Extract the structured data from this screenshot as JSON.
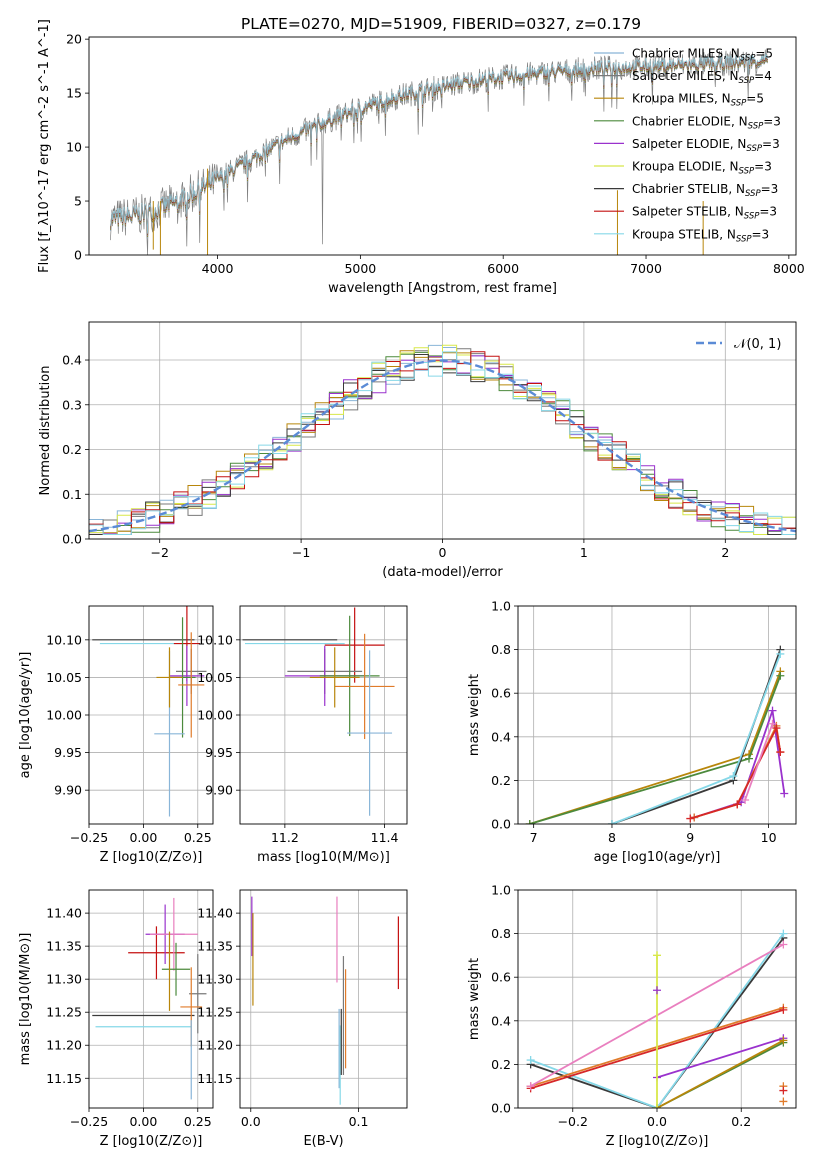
{
  "figure": {
    "title": "PLATE=0270, MJD=51909, FIBERID=0327, z=0.179"
  },
  "colors": {
    "series": [
      "#a6cee3",
      "#1f78b4",
      "#b2df8a",
      "#33a02c",
      "#fb9a99",
      "#e31a1c",
      "#fdbf6f",
      "#ff7f00",
      "#cab2d6"
    ],
    "fit_models": [
      "#89b5d8",
      "#7a7a7a",
      "#b8860b",
      "#4c8a3c",
      "#9a32cd",
      "#d8e84a",
      "#3a3a3a",
      "#c41010",
      "#86d8e8"
    ],
    "normal_curve": "#5b8bd6",
    "extra": [
      "#e97fbf",
      "#e07b2a",
      "#d62728"
    ]
  },
  "chart_data": [
    {
      "id": "spectrum",
      "type": "line",
      "title": "PLATE=0270, MJD=51909, FIBERID=0327, z=0.179",
      "xlabel": "wavelength [Angstrom, rest frame]",
      "ylabel": "Flux [f_λ10^-17 erg cm^-2 s^-1 A^-1]",
      "xlim": [
        3100,
        8050
      ],
      "ylim": [
        0,
        20.2
      ],
      "xticks": [
        4000,
        5000,
        6000,
        7000,
        8000
      ],
      "yticks": [
        0,
        5,
        10,
        15,
        20
      ],
      "grid": false,
      "legend_position": "right",
      "series": [
        {
          "name": "Chabrier MILES, N_SSP=5"
        },
        {
          "name": "Salpeter MILES, N_SSP=4"
        },
        {
          "name": "Kroupa MILES, N_SSP=5"
        },
        {
          "name": "Chabrier ELODIE, N_SSP=3"
        },
        {
          "name": "Salpeter ELODIE, N_SSP=3"
        },
        {
          "name": "Kroupa ELODIE, N_SSP=3"
        },
        {
          "name": "Chabrier STELIB, N_SSP=3"
        },
        {
          "name": "Salpeter STELIB, N_SSP=3"
        },
        {
          "name": "Kroupa STELIB, N_SSP=3"
        }
      ],
      "continuum": {
        "x": [
          3250,
          3500,
          3700,
          3900,
          4100,
          4300,
          4500,
          4700,
          4900,
          5100,
          5300,
          5500,
          5700,
          5900,
          6100,
          6300,
          6500,
          6700,
          6900,
          7100,
          7300,
          7500,
          7700,
          7850
        ],
        "y": [
          3.3,
          3.8,
          4.8,
          6.2,
          7.8,
          9.3,
          10.8,
          12.0,
          13.1,
          14.0,
          14.8,
          15.4,
          15.9,
          16.3,
          16.6,
          16.9,
          17.1,
          17.3,
          17.4,
          17.5,
          17.6,
          17.7,
          17.9,
          18.0
        ]
      }
    },
    {
      "id": "residuals",
      "type": "line",
      "xlabel": "(data-model)/error",
      "ylabel": "Normed distribution",
      "xlim": [
        -2.5,
        2.5
      ],
      "ylim": [
        0,
        0.485
      ],
      "xticks": [
        -2,
        -1,
        0,
        1,
        2
      ],
      "yticks": [
        0.0,
        0.1,
        0.2,
        0.3,
        0.4
      ],
      "grid": true,
      "legend_position": "top-right",
      "legend": [
        "𝒩(0, 1)"
      ],
      "bins": 50
    },
    {
      "id": "age_vs_Z",
      "type": "scatter",
      "xlabel": "Z [log10(Z/Z⊙)]",
      "ylabel": "age  [log10(age/yr)]",
      "xlim": [
        -0.25,
        0.32
      ],
      "ylim": [
        9.855,
        10.145
      ],
      "xticks": [
        -0.25,
        0.0,
        0.25
      ],
      "yticks": [
        9.9,
        9.95,
        10.0,
        10.05,
        10.1
      ],
      "grid": true,
      "points": [
        {
          "x": 0.0,
          "y": 10.1,
          "xerr": 0.235,
          "yerr": 0.0,
          "c": 6
        },
        {
          "x": 0.02,
          "y": 10.095,
          "xerr": 0.22,
          "yerr": 0.0,
          "c": 8
        },
        {
          "x": 0.2,
          "y": 10.095,
          "xerr": 0.06,
          "yerr": 0.05,
          "c": 7
        },
        {
          "x": 0.22,
          "y": 10.058,
          "xerr": 0.07,
          "yerr": 0.03,
          "c": 1
        },
        {
          "x": 0.2,
          "y": 10.052,
          "xerr": 0.08,
          "yerr": 0.04,
          "c": 4
        },
        {
          "x": 0.18,
          "y": 10.05,
          "xerr": 0.06,
          "yerr": 0.08,
          "c": 3
        },
        {
          "x": 0.22,
          "y": 10.04,
          "xerr": 0.06,
          "yerr": 0.07,
          "c": 10
        },
        {
          "x": 0.12,
          "y": 9.975,
          "xerr": 0.07,
          "yerr": 0.11,
          "c": 0
        },
        {
          "x": 0.12,
          "y": 10.05,
          "xerr": 0.06,
          "yerr": 0.04,
          "c": 2
        }
      ]
    },
    {
      "id": "age_vs_mass",
      "type": "scatter",
      "xlabel": "mass [log10(M/M⊙)]",
      "ylabel": "",
      "xlim": [
        11.11,
        11.445
      ],
      "ylim": [
        9.855,
        10.145
      ],
      "xticks": [
        11.2,
        11.4
      ],
      "yticks": [
        9.9,
        9.95,
        10.0,
        10.05,
        10.1
      ],
      "grid": true,
      "points": [
        {
          "x": 11.21,
          "y": 10.1,
          "xerr": 0.095,
          "yerr": 0.0,
          "c": 6
        },
        {
          "x": 11.22,
          "y": 10.095,
          "xerr": 0.1,
          "yerr": 0.0,
          "c": 8
        },
        {
          "x": 11.34,
          "y": 10.093,
          "xerr": 0.06,
          "yerr": 0.05,
          "c": 7
        },
        {
          "x": 11.28,
          "y": 10.058,
          "xerr": 0.075,
          "yerr": 0.03,
          "c": 1
        },
        {
          "x": 11.28,
          "y": 10.052,
          "xerr": 0.08,
          "yerr": 0.04,
          "c": 4
        },
        {
          "x": 11.33,
          "y": 10.052,
          "xerr": 0.06,
          "yerr": 0.08,
          "c": 3
        },
        {
          "x": 11.36,
          "y": 10.038,
          "xerr": 0.06,
          "yerr": 0.07,
          "c": 10
        },
        {
          "x": 11.37,
          "y": 9.976,
          "xerr": 0.045,
          "yerr": 0.11,
          "c": 0
        },
        {
          "x": 11.3,
          "y": 10.05,
          "xerr": 0.05,
          "yerr": 0.04,
          "c": 2
        }
      ]
    },
    {
      "id": "weight_vs_age",
      "type": "line",
      "xlabel": "age  [log10(age/yr)]",
      "ylabel": "mass weight",
      "xlim": [
        6.8,
        10.35
      ],
      "ylim": [
        0.0,
        1.0
      ],
      "xticks": [
        7,
        8,
        9,
        10
      ],
      "yticks": [
        0.0,
        0.2,
        0.4,
        0.6,
        0.8,
        1.0
      ],
      "grid": true,
      "series": [
        {
          "x": [
            6.95,
            9.75,
            10.15
          ],
          "y": [
            0.0,
            0.32,
            0.7
          ],
          "c": 2
        },
        {
          "x": [
            6.95,
            9.75,
            10.15
          ],
          "y": [
            0.0,
            0.3,
            0.68
          ],
          "c": 3
        },
        {
          "x": [
            8.0,
            9.55,
            10.15
          ],
          "y": [
            0.0,
            0.2,
            0.8
          ],
          "c": 6
        },
        {
          "x": [
            8.0,
            9.55,
            10.15
          ],
          "y": [
            0.0,
            0.22,
            0.78
          ],
          "c": 8
        },
        {
          "x": [
            9.05,
            9.65,
            10.05,
            10.2
          ],
          "y": [
            0.03,
            0.1,
            0.52,
            0.14
          ],
          "c": 4
        },
        {
          "x": [
            9.05,
            9.6,
            10.1,
            10.15
          ],
          "y": [
            0.03,
            0.09,
            0.45,
            0.33
          ],
          "c": 10
        },
        {
          "x": [
            9.0,
            9.6,
            10.1,
            10.15
          ],
          "y": [
            0.025,
            0.09,
            0.44,
            0.33
          ],
          "c": 11
        },
        {
          "x": [
            9.7,
            10.05
          ],
          "y": [
            0.11,
            0.46
          ],
          "c": 9
        }
      ]
    },
    {
      "id": "mass_vs_Z",
      "type": "scatter",
      "xlabel": "Z [log10(Z/Z⊙)]",
      "ylabel": "mass [log10(M/M⊙)]",
      "xlim": [
        -0.25,
        0.32
      ],
      "ylim": [
        11.105,
        11.435
      ],
      "xticks": [
        -0.25,
        0.0,
        0.25
      ],
      "yticks": [
        11.15,
        11.2,
        11.25,
        11.3,
        11.35,
        11.4
      ],
      "grid": true,
      "points": [
        {
          "x": 0.0,
          "y": 11.245,
          "xerr": 0.235,
          "yerr": 0.0,
          "c": 6
        },
        {
          "x": 0.0,
          "y": 11.228,
          "xerr": 0.22,
          "yerr": 0.0,
          "c": 8
        },
        {
          "x": 0.06,
          "y": 11.34,
          "xerr": 0.13,
          "yerr": 0.04,
          "c": 7
        },
        {
          "x": 0.25,
          "y": 11.278,
          "xerr": 0.04,
          "yerr": 0.06,
          "c": 1
        },
        {
          "x": 0.1,
          "y": 11.368,
          "xerr": 0.09,
          "yerr": 0.045,
          "c": 4
        },
        {
          "x": 0.14,
          "y": 11.368,
          "xerr": 0.11,
          "yerr": 0.055,
          "c": 9
        },
        {
          "x": 0.22,
          "y": 11.258,
          "xerr": 0.05,
          "yerr": 0.06,
          "c": 10
        },
        {
          "x": 0.15,
          "y": 11.315,
          "xerr": 0.065,
          "yerr": 0.04,
          "c": 3
        },
        {
          "x": 0.22,
          "y": 11.178,
          "xerr": 0.0,
          "yerr": 0.06,
          "c": 0
        },
        {
          "x": 0.12,
          "y": 11.312,
          "xerr": 0.0,
          "yerr": 0.06,
          "c": 2
        }
      ]
    },
    {
      "id": "mass_vs_ebv",
      "type": "scatter",
      "xlabel": "E(B-V)",
      "ylabel": "",
      "xlim": [
        -0.01,
        0.145
      ],
      "ylim": [
        11.105,
        11.435
      ],
      "xticks": [
        0.0,
        0.1
      ],
      "yticks": [
        11.15,
        11.2,
        11.25,
        11.3,
        11.35,
        11.4
      ],
      "grid": true,
      "points": [
        {
          "x": 0.001,
          "y": 11.38,
          "xerr": 0,
          "yerr": 0.045,
          "c": 4
        },
        {
          "x": 0.002,
          "y": 11.33,
          "xerr": 0,
          "yerr": 0.07,
          "c": 2
        },
        {
          "x": 0.08,
          "y": 11.36,
          "xerr": 0,
          "yerr": 0.065,
          "c": 9
        },
        {
          "x": 0.082,
          "y": 11.195,
          "xerr": 0,
          "yerr": 0.06,
          "c": 0
        },
        {
          "x": 0.083,
          "y": 11.17,
          "xerr": 0,
          "yerr": 0.06,
          "c": 8
        },
        {
          "x": 0.084,
          "y": 11.205,
          "xerr": 0,
          "yerr": 0.05,
          "c": 6
        },
        {
          "x": 0.086,
          "y": 11.245,
          "xerr": 0,
          "yerr": 0.09,
          "c": 1
        },
        {
          "x": 0.088,
          "y": 11.24,
          "xerr": 0,
          "yerr": 0.075,
          "c": 10
        },
        {
          "x": 0.137,
          "y": 11.34,
          "xerr": 0,
          "yerr": 0.055,
          "c": 7
        }
      ]
    },
    {
      "id": "weight_vs_Z",
      "type": "line",
      "xlabel": "Z [log10(Z/Z⊙)]",
      "ylabel": "mass weight",
      "xlim": [
        -0.33,
        0.33
      ],
      "ylim": [
        0.0,
        1.0
      ],
      "xticks": [
        -0.2,
        0.0,
        0.2
      ],
      "yticks": [
        0.0,
        0.2,
        0.4,
        0.6,
        0.8,
        1.0
      ],
      "grid": true,
      "series": [
        {
          "x": [
            -0.3,
            0.0,
            0.3
          ],
          "y": [
            0.2,
            0.0,
            0.78
          ],
          "c": 6
        },
        {
          "x": [
            -0.3,
            0.0,
            0.3
          ],
          "y": [
            0.22,
            0.0,
            0.8
          ],
          "c": 8
        },
        {
          "x": [
            -0.3,
            0.3
          ],
          "y": [
            0.1,
            0.46
          ],
          "c": 10
        },
        {
          "x": [
            -0.3,
            0.3
          ],
          "y": [
            0.09,
            0.45
          ],
          "c": 11
        },
        {
          "x": [
            -0.3,
            0.3
          ],
          "y": [
            0.1,
            0.75
          ],
          "c": 9
        },
        {
          "x": [
            0.0,
            0.3
          ],
          "y": [
            0.14,
            0.32
          ],
          "c": 4
        },
        {
          "x": [
            0.0,
            0.3
          ],
          "y": [
            0.0,
            0.3
          ],
          "c": 3
        },
        {
          "x": [
            0.0,
            0.3
          ],
          "y": [
            0.0,
            0.31
          ],
          "c": 2
        },
        {
          "x": [
            0.0,
            0.0
          ],
          "y": [
            0.0,
            0.7
          ],
          "c": 5
        }
      ],
      "markers": [
        {
          "x": 0.0,
          "y": 0.7,
          "c": 5
        },
        {
          "x": 0.0,
          "y": 0.54,
          "c": 4
        },
        {
          "x": 0.3,
          "y": 0.1,
          "c": 10
        },
        {
          "x": 0.3,
          "y": 0.03,
          "c": 10
        },
        {
          "x": 0.3,
          "y": 0.08,
          "c": 11
        }
      ]
    }
  ]
}
